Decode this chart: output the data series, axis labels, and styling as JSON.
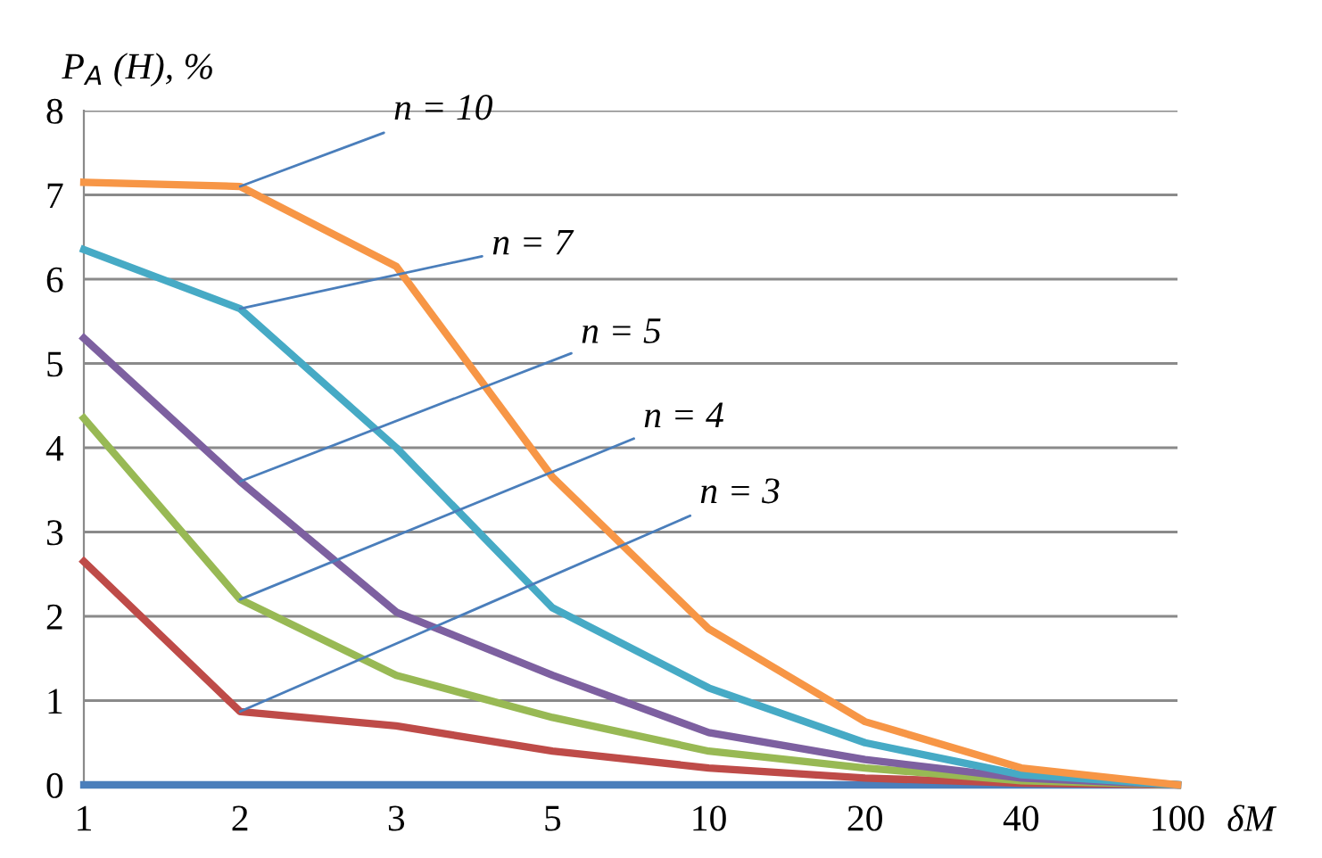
{
  "chart_data": {
    "type": "line",
    "xlabel": "δM",
    "ylabel": "P$_{A}$ (H), %",
    "categories": [
      "1",
      "2",
      "3",
      "5",
      "10",
      "20",
      "40",
      "100"
    ],
    "series": [
      {
        "color": "#4a7ebb",
        "values": [
          0,
          0,
          0,
          0,
          0,
          0,
          0,
          0
        ]
      },
      {
        "color": "#be4b48",
        "values": [
          2.65,
          0.87,
          0.7,
          0.4,
          0.2,
          0.08,
          0.02,
          0
        ]
      },
      {
        "color": "#98b954",
        "values": [
          4.35,
          2.2,
          1.3,
          0.8,
          0.4,
          0.2,
          0.05,
          0
        ]
      },
      {
        "color": "#7d60a0",
        "values": [
          5.3,
          3.6,
          2.05,
          1.3,
          0.62,
          0.3,
          0.08,
          0
        ]
      },
      {
        "color": "#46aac5",
        "values": [
          6.35,
          5.65,
          4.0,
          2.1,
          1.15,
          0.5,
          0.12,
          0
        ]
      },
      {
        "color": "#f79646",
        "values": [
          7.15,
          7.1,
          6.15,
          3.65,
          1.85,
          0.75,
          0.2,
          0
        ]
      }
    ],
    "annotations": [
      {
        "text": "n = 10",
        "x": "2",
        "y": 7.1
      },
      {
        "text": "n = 7",
        "x": "2",
        "y": 5.65
      },
      {
        "text": "n = 5",
        "x": "2",
        "y": 3.6
      },
      {
        "text": "n = 4",
        "x": "2",
        "y": 2.2
      },
      {
        "text": "n = 3",
        "x": "2",
        "y": 0.87
      }
    ],
    "ylim": [
      0,
      8
    ],
    "yticks": [
      0,
      1,
      2,
      3,
      4,
      5,
      6,
      7,
      8
    ],
    "grid": "y",
    "legend": false,
    "marker": "none",
    "line_style": "solid"
  }
}
